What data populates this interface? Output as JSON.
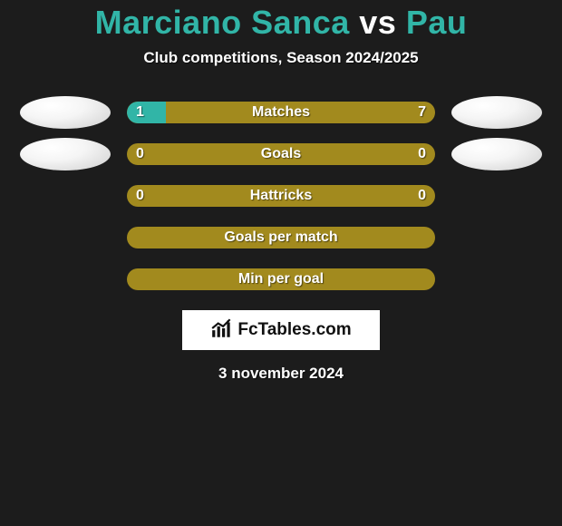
{
  "title": {
    "player1": "Marciano Sanca",
    "vs": "vs",
    "player2": "Pau"
  },
  "subtitle": "Club competitions, Season 2024/2025",
  "colors": {
    "player1": "#31b5a7",
    "player2": "#a28a1e",
    "background": "#1c1c1c",
    "text": "#ffffff"
  },
  "stats": [
    {
      "label": "Matches",
      "left_value": "1",
      "right_value": "7",
      "left_raw": 1,
      "right_raw": 7,
      "fill_left_pct": 12.5,
      "bar_fill_color": "#31b5a7",
      "bar_bg_color": "#a28a1e",
      "show_left_oval": true,
      "show_right_oval": true
    },
    {
      "label": "Goals",
      "left_value": "0",
      "right_value": "0",
      "left_raw": 0,
      "right_raw": 0,
      "fill_left_pct": 0,
      "bar_fill_color": "#31b5a7",
      "bar_bg_color": "#a28a1e",
      "show_left_oval": true,
      "show_right_oval": true
    },
    {
      "label": "Hattricks",
      "left_value": "0",
      "right_value": "0",
      "left_raw": 0,
      "right_raw": 0,
      "fill_left_pct": 0,
      "bar_fill_color": "#31b5a7",
      "bar_bg_color": "#a28a1e",
      "show_left_oval": false,
      "show_right_oval": false
    },
    {
      "label": "Goals per match",
      "left_value": "",
      "right_value": "",
      "left_raw": null,
      "right_raw": null,
      "fill_left_pct": 0,
      "bar_fill_color": "#31b5a7",
      "bar_bg_color": "#a28a1e",
      "show_left_oval": false,
      "show_right_oval": false
    },
    {
      "label": "Min per goal",
      "left_value": "",
      "right_value": "",
      "left_raw": null,
      "right_raw": null,
      "fill_left_pct": 0,
      "bar_fill_color": "#31b5a7",
      "bar_bg_color": "#a28a1e",
      "show_left_oval": false,
      "show_right_oval": false
    }
  ],
  "logo_text": "FcTables.com",
  "date": "3 november 2024"
}
